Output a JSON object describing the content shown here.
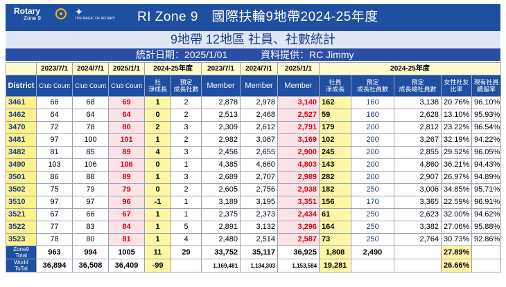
{
  "header": {
    "logo_text": "Rotary",
    "logo_sub": "Zone 9",
    "magic_text": "THE MAGIC OF ROTARY",
    "title": "RI Zone 9　國際扶輪9地帶2024-25年度",
    "subtitle": "9地帶 12地區 社員、社數統計",
    "stat_date": "統計日期：2025/1/01",
    "provider": "資料提供：RC Jimmy"
  },
  "columns_top": [
    "",
    "2023/7/1",
    "2024/7/1",
    "2025/1/1",
    "2024-25年度",
    "2023/7/1",
    "2024/7/1",
    "2025/1/1",
    "2024-25年度"
  ],
  "columns_sub": [
    "District",
    "Club Count",
    "Club Count",
    "Club Count",
    "社\n淨成長",
    "預定\n成長社數",
    "Member",
    "Member",
    "Member",
    "社員\n淨成長",
    "預定\n成長社員數",
    "預定\n成長總社員數",
    "女性社友\n比率",
    "現有社員\n續留率"
  ],
  "rows": [
    [
      "3461",
      "66",
      "68",
      "69",
      "1",
      "2",
      "2,878",
      "2,978",
      "3,140",
      "162",
      "160",
      "3,138",
      "20.76%",
      "96.10%"
    ],
    [
      "3462",
      "64",
      "64",
      "64",
      "0",
      "2",
      "2,513",
      "2,468",
      "2,527",
      "59",
      "160",
      "2,628",
      "13.10%",
      "95.93%"
    ],
    [
      "3470",
      "72",
      "78",
      "80",
      "2",
      "3",
      "2,309",
      "2,612",
      "2,791",
      "179",
      "200",
      "2,812",
      "23.22%",
      "96.54%"
    ],
    [
      "3481",
      "97",
      "100",
      "101",
      "1",
      "2",
      "2,982",
      "3,067",
      "3,169",
      "102",
      "200",
      "3,267",
      "32.19%",
      "94.22%"
    ],
    [
      "3482",
      "81",
      "85",
      "89",
      "4",
      "3",
      "2,456",
      "2,655",
      "2,900",
      "245",
      "200",
      "2,855",
      "29.52%",
      "96.05%"
    ],
    [
      "3490",
      "103",
      "106",
      "106",
      "0",
      "1",
      "4,385",
      "4,660",
      "4,803",
      "143",
      "200",
      "4,860",
      "36.21%",
      "94.43%"
    ],
    [
      "3501",
      "86",
      "88",
      "89",
      "1",
      "3",
      "2,689",
      "2,707",
      "2,989",
      "282",
      "200",
      "2,907",
      "26.97%",
      "94.89%"
    ],
    [
      "3502",
      "75",
      "79",
      "79",
      "0",
      "2",
      "2,605",
      "2,756",
      "2,938",
      "182",
      "250",
      "3,006",
      "34.85%",
      "95.71%"
    ],
    [
      "3510",
      "97",
      "97",
      "96",
      "-1",
      "1",
      "3,189",
      "3,195",
      "3,351",
      "156",
      "170",
      "3,365",
      "22.59%",
      "96.91%"
    ],
    [
      "3521",
      "67",
      "66",
      "67",
      "1",
      "1",
      "2,375",
      "2,373",
      "2,434",
      "61",
      "250",
      "2,623",
      "32.00%",
      "94.62%"
    ],
    [
      "3522",
      "77",
      "83",
      "84",
      "1",
      "5",
      "2,891",
      "3,132",
      "3,296",
      "164",
      "250",
      "3,382",
      "27.06%",
      "95.88%"
    ],
    [
      "3523",
      "78",
      "80",
      "81",
      "1",
      "4",
      "2,480",
      "2,514",
      "2,587",
      "73",
      "250",
      "2,764",
      "30.73%",
      "92.86%"
    ]
  ],
  "zone_total": {
    "label": "Zone9 Total",
    "values": [
      "963",
      "994",
      "1005",
      "11",
      "29",
      "33,752",
      "35,117",
      "36,925",
      "1,808",
      "2,490",
      "",
      "27.89%",
      ""
    ]
  },
  "world_total": {
    "label": "World ToTal",
    "values": [
      "36,894",
      "36,508",
      "36,409",
      "-99",
      "",
      "1,169,481",
      "1,134,303",
      "1,153,584",
      "19,281",
      "",
      "",
      "26.66%",
      ""
    ]
  }
}
